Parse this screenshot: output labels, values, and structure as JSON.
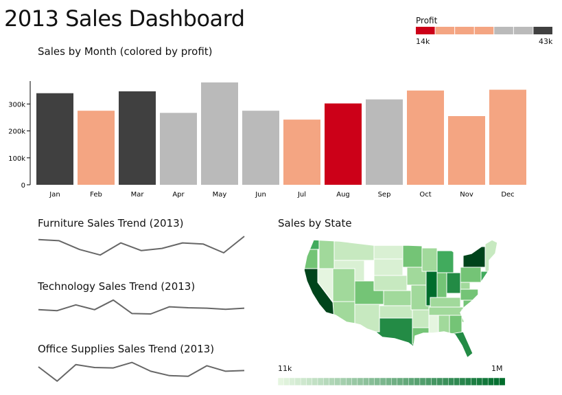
{
  "dashboard": {
    "title": "2013 Sales Dashboard"
  },
  "profit_legend": {
    "title": "Profit",
    "min_label": "14k",
    "max_label": "43k",
    "colors": [
      "#cc0018",
      "#f4a582",
      "#f4a582",
      "#f4a582",
      "#bababa",
      "#bababa",
      "#404040"
    ]
  },
  "map_legend": {
    "min_label": "11k",
    "max_label": "1M",
    "color_low": "#e5f5e0",
    "color_high": "#006d2c"
  },
  "sparklines": [
    {
      "title": "Furniture Sales Trend (2013)",
      "values": [
        0.85,
        0.8,
        0.4,
        0.15,
        0.7,
        0.35,
        0.45,
        0.7,
        0.65,
        0.25,
        1.0
      ]
    },
    {
      "title": "Technology Sales Trend (2013)",
      "values": [
        0.4,
        0.35,
        0.65,
        0.4,
        0.9,
        0.2,
        0.18,
        0.55,
        0.5,
        0.48,
        0.42,
        0.48
      ]
    },
    {
      "title": "Office Supplies Sales Trend (2013)",
      "values": [
        0.75,
        0.1,
        0.85,
        0.72,
        0.7,
        0.95,
        0.55,
        0.35,
        0.32,
        0.8,
        0.55,
        0.58
      ]
    }
  ],
  "map": {
    "title": "Sales by State"
  },
  "chart_data": {
    "type": "bar",
    "title": "Sales by Month (colored by profit)",
    "xlabel": "",
    "ylabel": "",
    "ylim": [
      0,
      380000
    ],
    "yticks": [
      0,
      100000,
      200000,
      300000
    ],
    "ytick_labels": [
      "0",
      "100k",
      "200k",
      "300k"
    ],
    "categories": [
      "Jan",
      "Feb",
      "Mar",
      "Apr",
      "May",
      "Jun",
      "Jul",
      "Aug",
      "Sep",
      "Oct",
      "Nov",
      "Dec"
    ],
    "values": [
      340000,
      275000,
      347000,
      267000,
      380000,
      275000,
      242000,
      302000,
      317000,
      350000,
      255000,
      353000
    ],
    "colors": [
      "#404040",
      "#f4a582",
      "#404040",
      "#bababa",
      "#bababa",
      "#bababa",
      "#f4a582",
      "#cc0018",
      "#bababa",
      "#f4a582",
      "#f4a582",
      "#f4a582"
    ]
  }
}
